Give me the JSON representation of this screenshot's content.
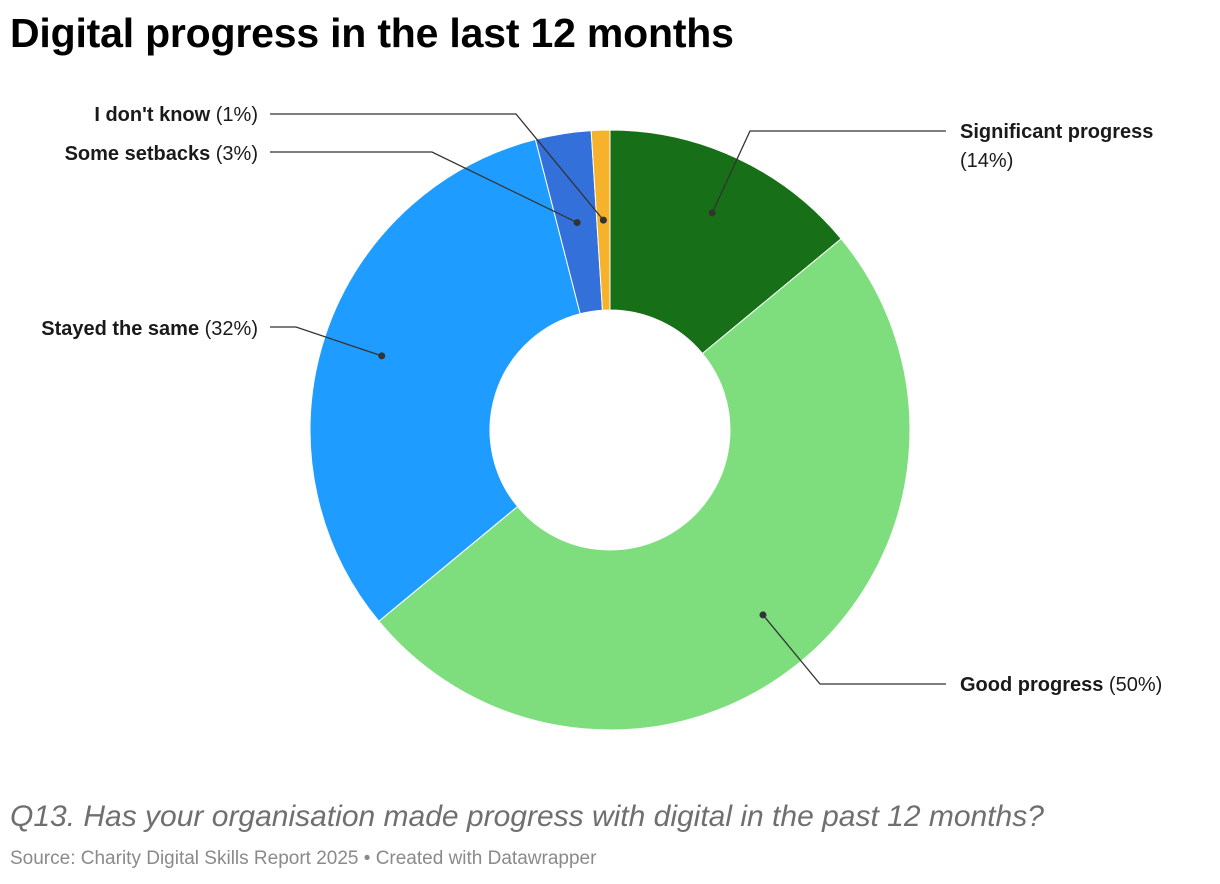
{
  "chart_data": {
    "type": "pie",
    "title": "Digital progress in the last 12 months",
    "categories": [
      "Significant progress",
      "Good progress",
      "Stayed the same",
      "Some setbacks",
      "I don't know"
    ],
    "values": [
      14,
      50,
      32,
      3,
      1
    ],
    "value_labels": [
      "(14%)",
      "(50%)",
      "(32%)",
      "(3%)",
      "(1%)"
    ],
    "colors": [
      "#177017",
      "#7ede7e",
      "#1f9cff",
      "#3370d9",
      "#f5b22a"
    ],
    "donut": true,
    "note": "Q13. Has your organisation made progress with digital in the past 12 months?",
    "source": "Source: Charity Digital Skills Report 2025 • Created with Datawrapper"
  }
}
